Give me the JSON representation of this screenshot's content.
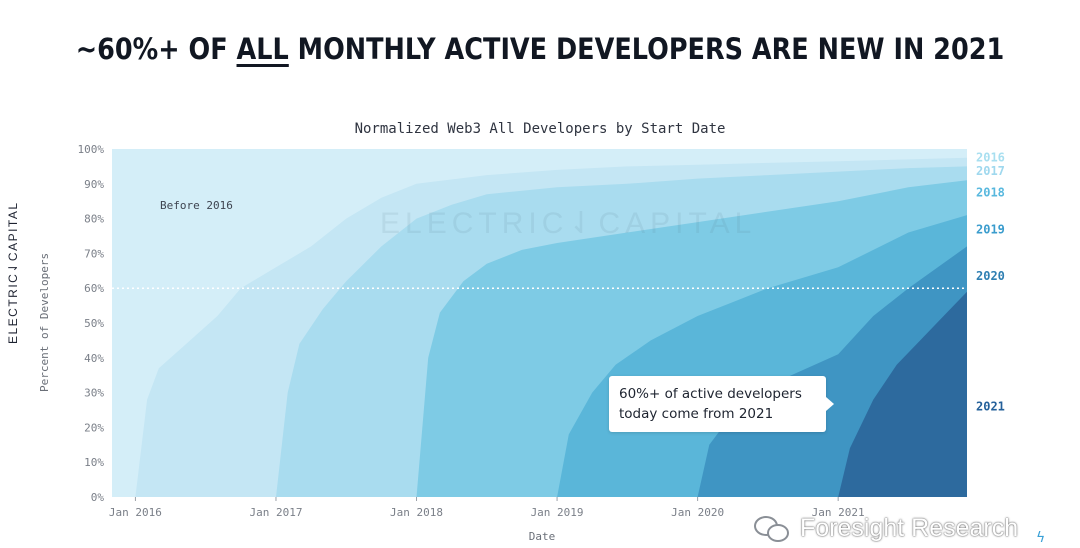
{
  "headline": {
    "pre": "~60%+ OF ",
    "underlined": "ALL",
    "post": " MONTHLY ACTIVE DEVELOPERS ARE NEW IN 2021"
  },
  "brand_vertical": "ELECTRIC⇃CAPITAL",
  "watermark": "ELECTRIC⇃CAPITAL",
  "annotation_before": "Before 2016",
  "callout": {
    "line1": "60%+ of active developers",
    "line2": "today come from 2021"
  },
  "footer_mark": "Foresight Research",
  "colors": {
    "before_2016": "#d4eef8",
    "c2016": "#c4e6f4",
    "c2017": "#a9dcef",
    "c2018": "#7ecbe5",
    "c2019": "#5ab6d9",
    "c2020": "#3f95c3",
    "c2021": "#2d6a9e",
    "reference_line": "#ffffff"
  },
  "chart_data": {
    "type": "area",
    "stacked": true,
    "normalized": true,
    "title": "Normalized Web3 All Developers by Start Date",
    "xlabel": "Date",
    "ylabel": "Percent of Developers",
    "xlim": [
      "2015-11",
      "2021-12"
    ],
    "ylim": [
      0,
      100
    ],
    "x_ticks": [
      "Jan 2016",
      "Jan 2017",
      "Jan 2018",
      "Jan 2019",
      "Jan 2020",
      "Jan 2021"
    ],
    "y_ticks": [
      "0%",
      "10%",
      "20%",
      "30%",
      "40%",
      "50%",
      "60%",
      "70%",
      "80%",
      "90%",
      "100%"
    ],
    "reference_line": {
      "y": 60,
      "style": "dotted"
    },
    "series": [
      {
        "name": "2016",
        "start": "2016-01",
        "points": [
          [
            "2016-01",
            0
          ],
          [
            "2016-02",
            28
          ],
          [
            "2016-03",
            37
          ],
          [
            "2016-05",
            43
          ],
          [
            "2016-08",
            52
          ],
          [
            "2016-10",
            60
          ],
          [
            "2017-01",
            66
          ],
          [
            "2017-04",
            72
          ],
          [
            "2017-07",
            80
          ],
          [
            "2017-10",
            86
          ],
          [
            "2018-01",
            90
          ],
          [
            "2018-07",
            92.5
          ],
          [
            "2019-01",
            94
          ],
          [
            "2019-07",
            95
          ],
          [
            "2020-01",
            95.5
          ],
          [
            "2020-07",
            96
          ],
          [
            "2021-01",
            96.5
          ],
          [
            "2021-07",
            97
          ],
          [
            "2021-12",
            97.5
          ]
        ]
      },
      {
        "name": "2017",
        "start": "2017-01",
        "points": [
          [
            "2017-01",
            0
          ],
          [
            "2017-02",
            30
          ],
          [
            "2017-03",
            44
          ],
          [
            "2017-05",
            54
          ],
          [
            "2017-07",
            62
          ],
          [
            "2017-10",
            72
          ],
          [
            "2018-01",
            80
          ],
          [
            "2018-04",
            84
          ],
          [
            "2018-07",
            87
          ],
          [
            "2019-01",
            89
          ],
          [
            "2019-07",
            90
          ],
          [
            "2020-01",
            91.5
          ],
          [
            "2020-07",
            92.5
          ],
          [
            "2021-01",
            93.5
          ],
          [
            "2021-07",
            94.5
          ],
          [
            "2021-12",
            95
          ]
        ]
      },
      {
        "name": "2018",
        "start": "2018-01",
        "points": [
          [
            "2018-01",
            0
          ],
          [
            "2018-02",
            40
          ],
          [
            "2018-03",
            53
          ],
          [
            "2018-05",
            62
          ],
          [
            "2018-07",
            67
          ],
          [
            "2018-10",
            71
          ],
          [
            "2019-01",
            73
          ],
          [
            "2019-07",
            76
          ],
          [
            "2020-01",
            79
          ],
          [
            "2020-07",
            82
          ],
          [
            "2021-01",
            85
          ],
          [
            "2021-07",
            89
          ],
          [
            "2021-12",
            91
          ]
        ]
      },
      {
        "name": "2019",
        "start": "2019-01",
        "points": [
          [
            "2019-01",
            0
          ],
          [
            "2019-02",
            18
          ],
          [
            "2019-04",
            30
          ],
          [
            "2019-06",
            38
          ],
          [
            "2019-09",
            45
          ],
          [
            "2020-01",
            52
          ],
          [
            "2020-04",
            56
          ],
          [
            "2020-07",
            60
          ],
          [
            "2021-01",
            66
          ],
          [
            "2021-07",
            76
          ],
          [
            "2021-12",
            81
          ]
        ]
      },
      {
        "name": "2020",
        "start": "2020-01",
        "points": [
          [
            "2020-01",
            0
          ],
          [
            "2020-02",
            15
          ],
          [
            "2020-04",
            24
          ],
          [
            "2020-06",
            30
          ],
          [
            "2020-09",
            35
          ],
          [
            "2021-01",
            41
          ],
          [
            "2021-04",
            52
          ],
          [
            "2021-07",
            60
          ],
          [
            "2021-12",
            72
          ]
        ]
      },
      {
        "name": "2021",
        "start": "2021-01",
        "points": [
          [
            "2021-01",
            0
          ],
          [
            "2021-02",
            14
          ],
          [
            "2021-04",
            28
          ],
          [
            "2021-06",
            38
          ],
          [
            "2021-08",
            45
          ],
          [
            "2021-10",
            52
          ],
          [
            "2021-12",
            59
          ]
        ]
      }
    ],
    "right_labels": [
      {
        "text": "2016",
        "y": 97.5
      },
      {
        "text": "2017",
        "y": 93.7
      },
      {
        "text": "2018",
        "y": 87.5
      },
      {
        "text": "2019",
        "y": 76.8
      },
      {
        "text": "2020",
        "y": 63.5
      },
      {
        "text": "2021",
        "y": 26
      }
    ]
  }
}
